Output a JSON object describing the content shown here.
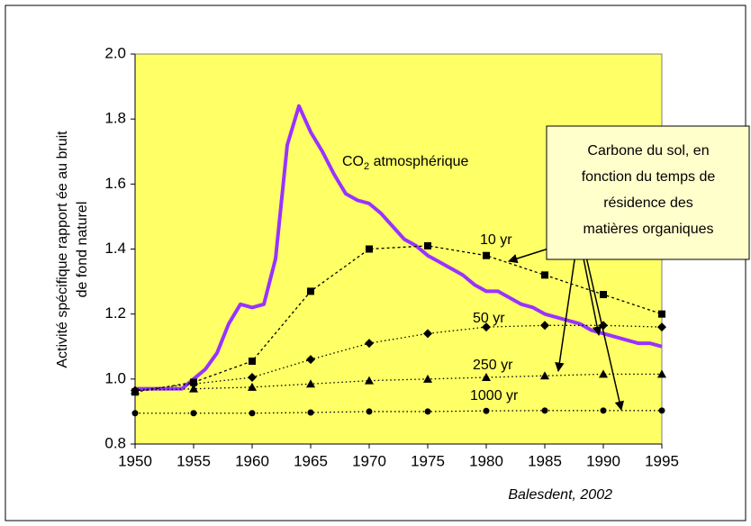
{
  "chart_data": {
    "type": "line",
    "y_label": [
      "Activité spécifique rapport ée au bruit",
      "de fond naturel"
    ],
    "source": "Balesdent, 2002",
    "co2_label": [
      "CO",
      "2",
      " atmosphérique"
    ],
    "callout": [
      "Carbone du sol, en",
      "fonction du temps de",
      "résidence des",
      "matières organiques"
    ],
    "xlim": [
      1950,
      1995
    ],
    "xticks": [
      1950,
      1955,
      1960,
      1965,
      1970,
      1975,
      1980,
      1985,
      1990,
      1995
    ],
    "ylim": [
      0.8,
      2.0
    ],
    "yticks": [
      {
        "value": 0.8,
        "label": "0.8"
      },
      {
        "value": 1.0,
        "label": "1.0"
      },
      {
        "value": 1.2,
        "label": "1.2"
      },
      {
        "value": 1.4,
        "label": "1.4"
      },
      {
        "value": 1.6,
        "label": "1.6"
      },
      {
        "value": 1.8,
        "label": "1.8"
      },
      {
        "value": 2.0,
        "label": "2.0"
      }
    ],
    "background": "#ffff66",
    "series": [
      {
        "color": "#9933ff",
        "line": "solid",
        "marker": "none",
        "x": [
          1950,
          1951,
          1952,
          1953,
          1954,
          1955,
          1956,
          1957,
          1958,
          1959,
          1960,
          1961,
          1962,
          1963,
          1964,
          1965,
          1966,
          1967,
          1968,
          1969,
          1970,
          1971,
          1972,
          1973,
          1974,
          1975,
          1976,
          1977,
          1978,
          1979,
          1980,
          1981,
          1982,
          1983,
          1984,
          1985,
          1986,
          1987,
          1988,
          1989,
          1990,
          1991,
          1992,
          1993,
          1994,
          1995
        ],
        "values": [
          0.97,
          0.97,
          0.97,
          0.97,
          0.97,
          1.0,
          1.03,
          1.08,
          1.17,
          1.23,
          1.22,
          1.23,
          1.37,
          1.72,
          1.84,
          1.76,
          1.7,
          1.63,
          1.57,
          1.55,
          1.54,
          1.51,
          1.47,
          1.43,
          1.41,
          1.38,
          1.36,
          1.34,
          1.32,
          1.29,
          1.27,
          1.27,
          1.25,
          1.23,
          1.22,
          1.2,
          1.19,
          1.18,
          1.17,
          1.15,
          1.14,
          1.13,
          1.12,
          1.11,
          1.11,
          1.1
        ]
      },
      {
        "name": "10 yr",
        "color": "#000000",
        "line": "dashed",
        "marker": "square",
        "x": [
          1950,
          1955,
          1960,
          1965,
          1970,
          1975,
          1980,
          1985,
          1990,
          1995
        ],
        "values": [
          0.96,
          0.99,
          1.055,
          1.27,
          1.4,
          1.41,
          1.38,
          1.32,
          1.26,
          1.2
        ]
      },
      {
        "name": "50 yr",
        "color": "#000000",
        "line": "dotted",
        "marker": "diamond",
        "x": [
          1950,
          1955,
          1960,
          1965,
          1970,
          1975,
          1980,
          1985,
          1990,
          1995
        ],
        "values": [
          0.965,
          0.985,
          1.005,
          1.06,
          1.11,
          1.14,
          1.16,
          1.165,
          1.165,
          1.16
        ]
      },
      {
        "name": "250 yr",
        "color": "#000000",
        "line": "dotted",
        "marker": "triangle",
        "x": [
          1950,
          1955,
          1960,
          1965,
          1970,
          1975,
          1980,
          1985,
          1990,
          1995
        ],
        "values": [
          0.965,
          0.97,
          0.975,
          0.985,
          0.995,
          1.0,
          1.005,
          1.01,
          1.015,
          1.015
        ]
      },
      {
        "name": "1000 yr",
        "color": "#000000",
        "line": "dotted",
        "marker": "circle",
        "x": [
          1950,
          1955,
          1960,
          1965,
          1970,
          1975,
          1980,
          1985,
          1990,
          1995
        ],
        "values": [
          0.895,
          0.895,
          0.895,
          0.897,
          0.9,
          0.9,
          0.902,
          0.903,
          0.903,
          0.903
        ]
      }
    ]
  }
}
